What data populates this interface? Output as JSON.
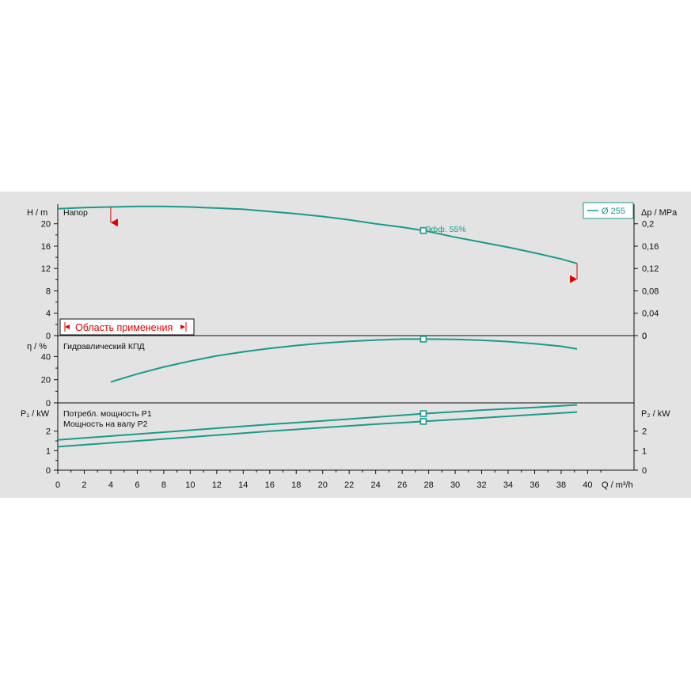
{
  "colors": {
    "background": "#e3e3e3",
    "curve": "#1a9a8a",
    "range_marker": "#e00000"
  },
  "legend": {
    "series_label": "Ø 255"
  },
  "range_box": {
    "label": "Область применения"
  },
  "chart_data": [
    {
      "type": "line",
      "panel": "head",
      "y_axis_label": "H / m",
      "y2_axis_label": "Δp / MPa",
      "series_label": "Напор",
      "yticks": [
        "0",
        "4",
        "8",
        "12",
        "16",
        "20"
      ],
      "y2ticks": [
        "0",
        "0,04",
        "0,08",
        "0,12",
        "0,16",
        "0,2"
      ],
      "ylim": [
        0,
        23.5
      ],
      "y2lim": [
        0,
        0.235
      ],
      "series": [
        {
          "x": [
            0,
            2,
            4,
            6,
            8,
            10,
            12,
            14,
            16,
            18,
            20,
            22,
            24,
            26,
            27.6,
            30,
            32,
            34,
            36,
            38,
            39.2
          ],
          "y": [
            22.7,
            22.9,
            23.0,
            23.1,
            23.1,
            23.0,
            22.8,
            22.6,
            22.2,
            21.8,
            21.3,
            20.7,
            20.0,
            19.4,
            18.8,
            17.6,
            16.7,
            15.8,
            14.8,
            13.7,
            12.9
          ]
        }
      ],
      "operating_point": {
        "x": 27.6,
        "y": 18.8,
        "label": "Эфф.  55%"
      },
      "range_limits": {
        "min_x": 4,
        "max_x": 39.2,
        "min_marker_y": 20.2,
        "max_marker_y": 10.1
      }
    },
    {
      "type": "line",
      "panel": "efficiency",
      "y_axis_label": "η / %",
      "series_label": "Гидравлический КПД",
      "yticks": [
        "0",
        "20",
        "40"
      ],
      "ylim": [
        0,
        58
      ],
      "series": [
        {
          "x": [
            4,
            6,
            8,
            10,
            12,
            14,
            16,
            18,
            20,
            22,
            24,
            26,
            27.6,
            30,
            32,
            34,
            36,
            38,
            39.2
          ],
          "y": [
            18,
            25,
            31,
            36,
            40.5,
            44,
            47,
            49.5,
            51.5,
            53,
            54.2,
            55,
            55,
            54.8,
            54,
            52.8,
            51,
            48.8,
            46.5
          ]
        }
      ],
      "operating_point": {
        "x": 27.6,
        "y": 55
      }
    },
    {
      "type": "line",
      "panel": "power",
      "y_axis_label": "P₁ / kW",
      "y2_axis_label": "P₂ / kW",
      "series_labels": [
        "Потребл. мощность P1",
        "Мощность на валу P2"
      ],
      "yticks": [
        "0",
        "1",
        "2"
      ],
      "y2ticks": [
        "0",
        "1",
        "2"
      ],
      "ylim": [
        0,
        3.45
      ],
      "series": [
        {
          "name": "Потребл. мощность P1",
          "x": [
            0,
            4,
            8,
            12,
            16,
            20,
            24,
            27.6,
            32,
            36,
            39.2
          ],
          "y": [
            1.55,
            1.75,
            1.95,
            2.15,
            2.35,
            2.53,
            2.72,
            2.9,
            3.08,
            3.22,
            3.35
          ]
        },
        {
          "name": "Мощность на валу P2",
          "x": [
            0,
            4,
            8,
            12,
            16,
            20,
            24,
            27.6,
            32,
            36,
            39.2
          ],
          "y": [
            1.2,
            1.4,
            1.6,
            1.8,
            2.0,
            2.18,
            2.36,
            2.5,
            2.68,
            2.85,
            2.98
          ]
        }
      ],
      "operating_points": [
        {
          "x": 27.6,
          "y": 2.9
        },
        {
          "x": 27.6,
          "y": 2.5
        }
      ]
    }
  ],
  "x_axis": {
    "label": "Q / m³/h",
    "ticks": [
      "0",
      "2",
      "4",
      "6",
      "8",
      "10",
      "12",
      "14",
      "16",
      "18",
      "20",
      "22",
      "24",
      "26",
      "28",
      "30",
      "32",
      "34",
      "36",
      "38",
      "40"
    ],
    "xlim": [
      0,
      43.5
    ]
  }
}
